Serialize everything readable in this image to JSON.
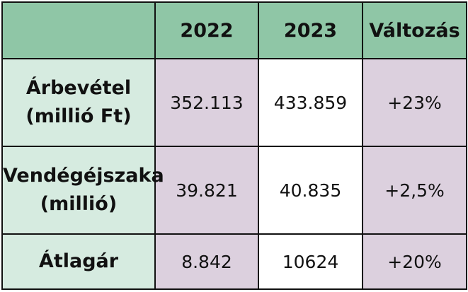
{
  "table": {
    "columns": [
      "",
      "2022",
      "2023",
      "Változás"
    ],
    "rows": [
      {
        "label_line1": "Árbevétel",
        "label_line2": "(millió Ft)",
        "values": [
          "352.113",
          "433.859",
          "+23%"
        ]
      },
      {
        "label_line1": "Vendégéjszaka",
        "label_line2": "(millió)",
        "values": [
          "39.821",
          "40.835",
          "+2,5%"
        ]
      },
      {
        "label_line1": "Átlagár",
        "label_line2": "",
        "values": [
          "8.842",
          "10624",
          "+20%"
        ]
      }
    ],
    "colors": {
      "header_bg": "#8fc6a6",
      "row_header_bg": "#d6ebe0",
      "highlight_cell_bg": "#dcd0de",
      "plain_cell_bg": "#ffffff",
      "border": "#111111"
    }
  }
}
